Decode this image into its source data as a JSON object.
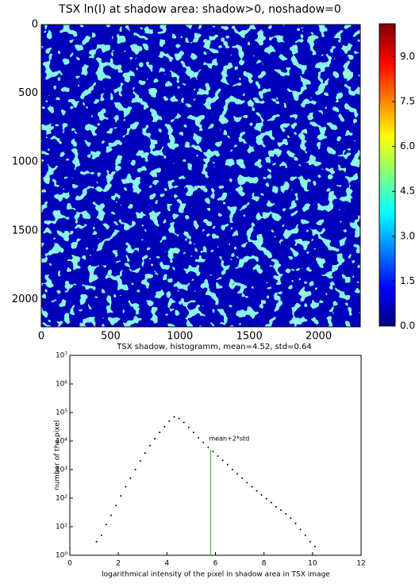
{
  "chart_data": [
    {
      "type": "heatmap",
      "title": "TSX ln(I) at shadow area: shadow>0, noshadow=0",
      "xlim": [
        0,
        2300
      ],
      "xticks": [
        0,
        500,
        1000,
        1500,
        2000
      ],
      "ylim": [
        2200,
        0
      ],
      "yticks": [
        0,
        500,
        1000,
        1500,
        2000
      ],
      "colormap": "jet",
      "clim": [
        0,
        10.1
      ],
      "cticks": [
        {
          "value": 0,
          "label": "0.0"
        },
        1.5,
        {
          "value": 3,
          "label": "3.0"
        },
        4.5,
        {
          "value": 6,
          "label": "6.0"
        },
        7.5,
        {
          "value": 9,
          "label": "9.0"
        }
      ]
    },
    {
      "type": "scatter",
      "title": "TSX shadow, histogramm, mean=4.52, std=0.64",
      "xlabel": "logarithmical intensity of the pixel in shadow area in TSX image",
      "ylabel": "number of the pixel",
      "xlim": [
        0,
        12
      ],
      "xticks": [
        0,
        2,
        4,
        6,
        8,
        10,
        12
      ],
      "ylim": [
        1,
        10000000
      ],
      "log_y": true,
      "yticks": [
        {
          "value": 1,
          "label": "10⁰"
        },
        {
          "value": 10,
          "label": "10¹"
        },
        {
          "value": 100,
          "label": "10²"
        },
        {
          "value": 1000,
          "label": "10³"
        },
        {
          "value": 10000,
          "label": "10⁴"
        },
        {
          "value": 100000,
          "label": "10⁵"
        },
        {
          "value": 1000000,
          "label": "10⁶"
        },
        {
          "value": 10000000,
          "label": "10⁷"
        }
      ],
      "color": "#000000",
      "x": [
        1.1,
        1.3,
        1.5,
        1.7,
        1.9,
        2.1,
        2.3,
        2.5,
        2.7,
        2.9,
        3.1,
        3.3,
        3.5,
        3.7,
        3.9,
        4.1,
        4.3,
        4.5,
        4.7,
        4.9,
        5.1,
        5.3,
        5.5,
        5.7,
        5.9,
        6.1,
        6.3,
        6.5,
        6.7,
        6.9,
        7.1,
        7.3,
        7.5,
        7.7,
        7.9,
        8.1,
        8.3,
        8.5,
        8.7,
        8.9,
        9.1,
        9.3,
        9.5,
        9.7,
        9.9,
        10.1
      ],
      "values": [
        3,
        5,
        12,
        25,
        55,
        120,
        250,
        500,
        1000,
        2000,
        3800,
        7000,
        12000,
        20000,
        32000,
        50000,
        70000,
        62000,
        45000,
        30000,
        20000,
        13000,
        9000,
        6000,
        4300,
        3000,
        2100,
        1500,
        1000,
        700,
        500,
        350,
        250,
        180,
        130,
        95,
        70,
        50,
        38,
        28,
        20,
        13,
        8,
        5,
        3,
        2
      ],
      "vline": {
        "x": 5.8,
        "ymax": 5000,
        "color": "#2ca02c",
        "label": "mean+2*std"
      }
    }
  ]
}
